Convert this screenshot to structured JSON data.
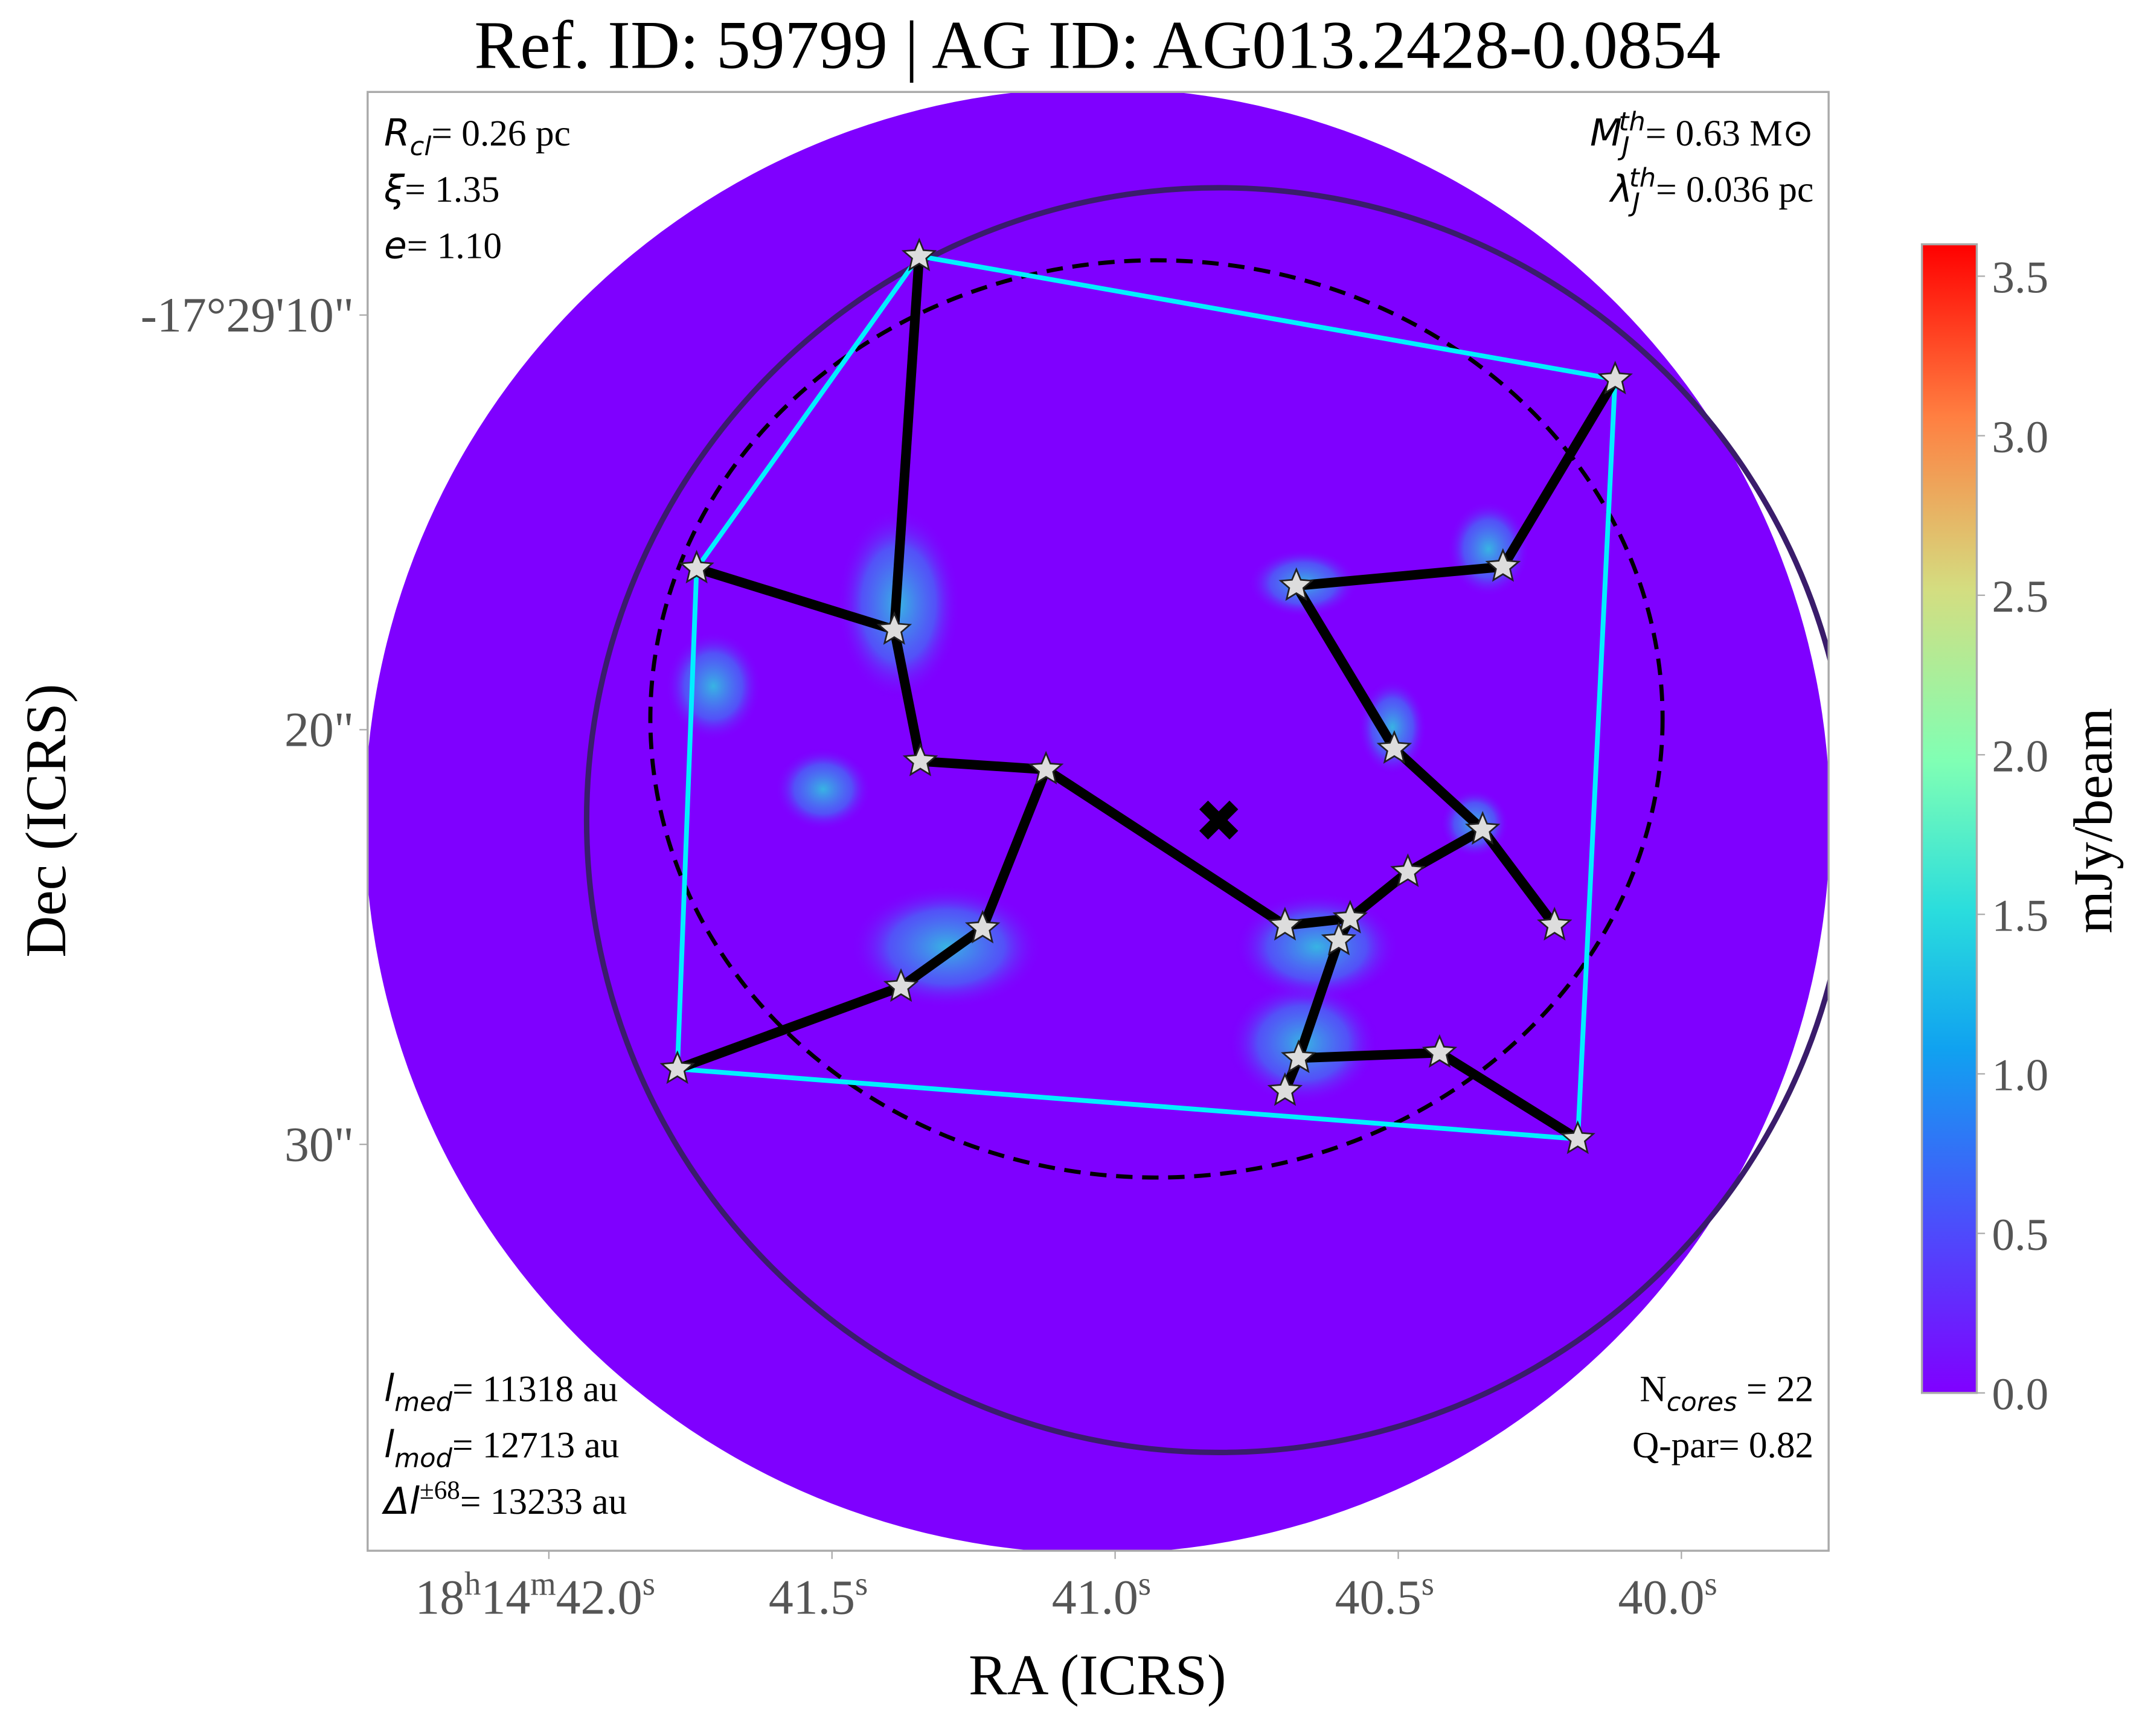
{
  "chart_data": {
    "type": "scatter",
    "title": "Ref. ID: 59799 | AG ID: AG013.2428-0.0854",
    "x_label": "RA (ICRS)",
    "y_label": "Dec (ICRS)",
    "xlim": [
      42.32,
      39.74
    ],
    "ylim": [
      4.62,
      39.8
    ],
    "xticks": [
      {
        "value": 42.0,
        "label": "18h14m42.0s"
      },
      {
        "value": 41.5,
        "label": "41.5s"
      },
      {
        "value": 41.0,
        "label": "41.0s"
      },
      {
        "value": 40.5,
        "label": "40.5s"
      },
      {
        "value": 40.0,
        "label": "40.0s"
      }
    ],
    "yticks": [
      {
        "value": 10,
        "label": "-17°29'10\""
      },
      {
        "value": 20,
        "label": "20\""
      },
      {
        "value": 30,
        "label": "30\""
      }
    ],
    "cores": {
      "x": [
        41.346,
        40.117,
        41.739,
        41.39,
        40.68,
        40.315,
        41.344,
        41.122,
        40.507,
        40.351,
        40.483,
        40.7,
        40.585,
        40.605,
        40.224,
        41.234,
        41.378,
        41.773,
        40.676,
        40.7,
        40.427,
        40.183
      ],
      "y": [
        8.58,
        11.55,
        16.11,
        17.59,
        16.53,
        16.07,
        20.76,
        20.96,
        20.46,
        22.41,
        23.43,
        24.72,
        24.55,
        25.08,
        24.72,
        24.79,
        26.2,
        28.18,
        27.92,
        28.71,
        27.79,
        29.87
      ]
    },
    "mst_edges": [
      [
        0,
        3
      ],
      [
        2,
        3
      ],
      [
        3,
        6
      ],
      [
        6,
        7
      ],
      [
        7,
        15
      ],
      [
        15,
        16
      ],
      [
        16,
        17
      ],
      [
        7,
        11
      ],
      [
        11,
        12
      ],
      [
        12,
        13
      ],
      [
        12,
        10
      ],
      [
        10,
        9
      ],
      [
        9,
        8
      ],
      [
        8,
        4
      ],
      [
        4,
        5
      ],
      [
        5,
        1
      ],
      [
        9,
        14
      ],
      [
        13,
        18
      ],
      [
        18,
        19
      ],
      [
        18,
        20
      ],
      [
        20,
        21
      ]
    ],
    "hull": [
      0,
      1,
      21,
      17,
      2
    ],
    "hull_color": "#00f0ff",
    "circle": {
      "x": 40.817,
      "y": 22.18,
      "radius": 15.25,
      "color": "#3a1c6b"
    },
    "ellipse": {
      "x": 40.927,
      "y": 19.74,
      "rx": 12.21,
      "ry": 11.06
    },
    "center": {
      "x": 40.817,
      "y": 22.18
    },
    "annotations_top_left": [
      {
        "symbol": "R",
        "sub": "cl",
        "text": "= 0.26 pc"
      },
      {
        "symbol": "ξ",
        "text": "= 1.35"
      },
      {
        "symbol": "e",
        "text": "= 1.10"
      }
    ],
    "annotations_top_right": [
      {
        "symbol": "M",
        "sub": "J",
        "sup": "th",
        "text": "= 0.63 M⊙"
      },
      {
        "symbol": "λ",
        "sub": "J",
        "sup": "th",
        "text": "= 0.036 pc"
      }
    ],
    "annotations_bottom_left": [
      {
        "symbol": "l",
        "sub": "med",
        "text": "= 11318 au"
      },
      {
        "symbol": "l",
        "sub": "mod",
        "text": "= 12713 au"
      },
      {
        "symbol": "Δl",
        "sup": "±68",
        "text": "= 13233 au"
      }
    ],
    "annotations_bottom_right": [
      {
        "prefix": "N",
        "sub": "cores",
        "text": " = 22"
      },
      {
        "text": "Q-par= 0.82"
      }
    ],
    "colorbar": {
      "label": "mJy/beam",
      "lim": [
        0,
        3.6
      ],
      "ticks": [
        {
          "value": 0,
          "label": "0.0"
        },
        {
          "value": 0.5,
          "label": "0.5"
        },
        {
          "value": 1,
          "label": "1.0"
        },
        {
          "value": 1.5,
          "label": "1.5"
        },
        {
          "value": 2,
          "label": "2.0"
        },
        {
          "value": 2.5,
          "label": "2.5"
        },
        {
          "value": 3,
          "label": "3.0"
        },
        {
          "value": 3.5,
          "label": "3.5"
        }
      ]
    }
  }
}
